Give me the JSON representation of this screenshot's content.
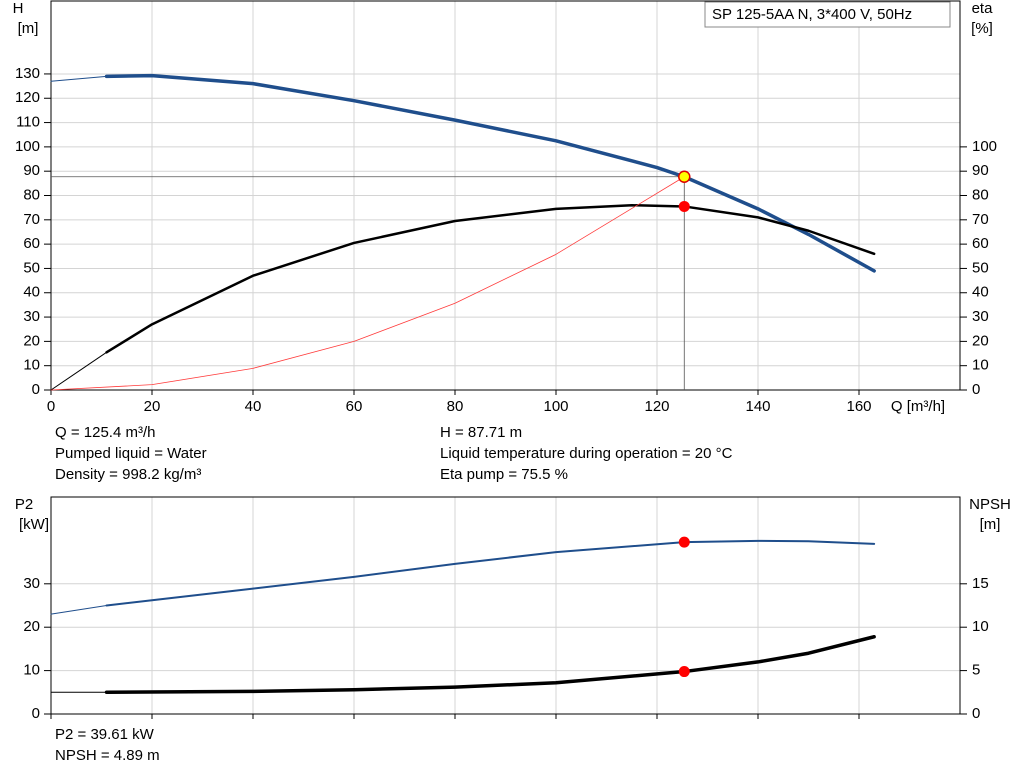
{
  "chart_data": [
    {
      "type": "line",
      "title": "SP 125-5AA N, 3*400 V, 50Hz",
      "ylabel": [
        "H",
        "[m]"
      ],
      "y2label": [
        "eta",
        "[%]"
      ],
      "xlabel": "Q [m³/h]",
      "xlim": [
        0,
        180
      ],
      "xticks": [
        0,
        20,
        40,
        60,
        80,
        100,
        120,
        140,
        160
      ],
      "ylim": [
        0,
        160
      ],
      "yticks": [
        0,
        10,
        20,
        30,
        40,
        50,
        60,
        70,
        80,
        90,
        100,
        110,
        120,
        130
      ],
      "y2lim": [
        0,
        160
      ],
      "y2ticks": [
        0,
        10,
        20,
        30,
        40,
        50,
        60,
        70,
        80,
        90,
        100
      ],
      "grid": true,
      "xtick_labels": true,
      "series": [
        {
          "color": "#1f4e8c",
          "width": 1,
          "axis": "y",
          "x": [
            0,
            11
          ],
          "values": [
            127,
            129
          ]
        },
        {
          "color": "#1f4e8c",
          "width": 3.5,
          "axis": "y",
          "x": [
            11,
            20,
            40,
            60,
            80,
            100,
            120,
            125.4,
            140,
            150,
            163
          ],
          "values": [
            129,
            129.3,
            126,
            119,
            111,
            102.5,
            91.5,
            87.71,
            74.5,
            64,
            49
          ]
        },
        {
          "color": "#000000",
          "width": 1,
          "axis": "y2",
          "x": [
            0,
            11
          ],
          "values": [
            0,
            15.5
          ]
        },
        {
          "color": "#000000",
          "width": 2.5,
          "axis": "y2",
          "x": [
            11,
            20,
            40,
            60,
            80,
            100,
            115,
            125.4,
            140,
            150,
            163
          ],
          "values": [
            15.5,
            27,
            47,
            60.5,
            69.5,
            74.5,
            76,
            75.5,
            71,
            65.5,
            56
          ]
        },
        {
          "color": "#ff3b3b",
          "width": 0.8,
          "axis": "y",
          "x": [
            0,
            20,
            40,
            60,
            80,
            100,
            125.4
          ],
          "values": [
            0,
            2.2,
            8.9,
            20,
            35.7,
            55.8,
            87.71
          ]
        }
      ],
      "points": [
        {
          "x": 125.4,
          "y": 87.71,
          "axis": "y",
          "color": "#ffff00",
          "crosshair": true
        },
        {
          "x": 125.4,
          "y": 75.5,
          "axis": "y2",
          "color": "#ff0000",
          "crosshair": false
        }
      ],
      "annotations": [
        [
          "Q = 125.4 m³/h",
          "Pumped liquid = Water",
          "Density = 998.2 kg/m³"
        ],
        [
          "H = 87.71 m",
          "Liquid temperature during operation = 20 °C",
          "Eta pump = 75.5 %"
        ]
      ]
    },
    {
      "type": "line",
      "ylabel": [
        "P2",
        "[kW]"
      ],
      "y2label": [
        "NPSH",
        "[m]"
      ],
      "xlim": [
        0,
        180
      ],
      "xticks": [
        0,
        20,
        40,
        60,
        80,
        100,
        120,
        140,
        160
      ],
      "ylim": [
        0,
        50
      ],
      "yticks": [
        0,
        10,
        20,
        30
      ],
      "y2lim": [
        0,
        25
      ],
      "y2ticks": [
        0,
        5,
        10,
        15
      ],
      "grid": true,
      "xtick_labels": false,
      "series": [
        {
          "color": "#1f4e8c",
          "width": 1,
          "axis": "y",
          "x": [
            0,
            11
          ],
          "values": [
            23,
            25
          ]
        },
        {
          "color": "#1f4e8c",
          "width": 2,
          "axis": "y",
          "x": [
            11,
            20,
            40,
            60,
            80,
            100,
            125.4,
            140,
            150,
            163
          ],
          "values": [
            25,
            26.2,
            28.9,
            31.6,
            34.6,
            37.3,
            39.61,
            39.9,
            39.8,
            39.2
          ]
        },
        {
          "color": "#000000",
          "width": 1,
          "axis": "y2",
          "x": [
            0,
            11
          ],
          "values": [
            2.5,
            2.5
          ]
        },
        {
          "color": "#000000",
          "width": 3.5,
          "axis": "y2",
          "x": [
            11,
            40,
            60,
            80,
            100,
            125.4,
            140,
            150,
            163
          ],
          "values": [
            2.5,
            2.6,
            2.8,
            3.1,
            3.6,
            4.89,
            6.0,
            7.0,
            8.9
          ]
        }
      ],
      "points": [
        {
          "x": 125.4,
          "y": 39.61,
          "axis": "y",
          "color": "#ff0000",
          "crosshair": false
        },
        {
          "x": 125.4,
          "y": 4.89,
          "axis": "y2",
          "color": "#ff0000",
          "crosshair": false
        }
      ],
      "annotations": [
        [
          "P2 = 39.61 kW",
          "NPSH = 4.89 m"
        ]
      ]
    }
  ]
}
